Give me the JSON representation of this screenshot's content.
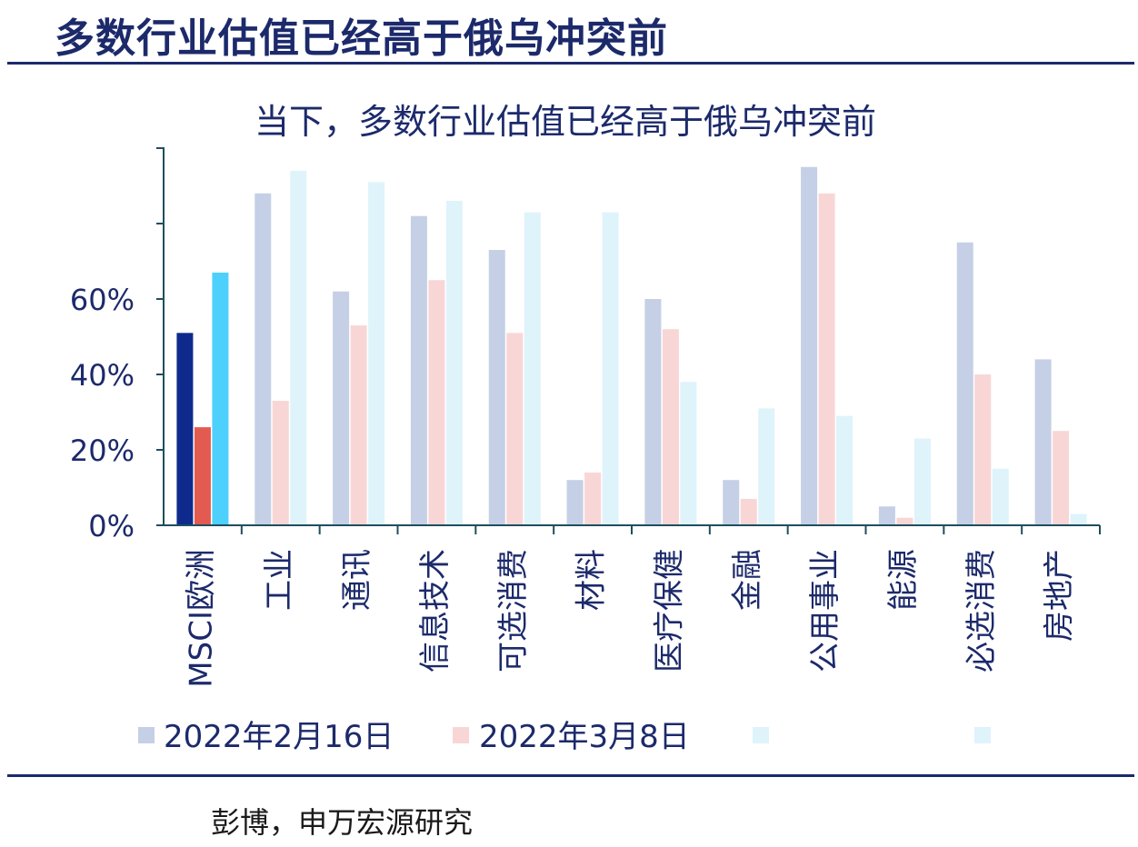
{
  "header": {
    "title": "多数行业估值已经高于俄乌冲突前"
  },
  "footer": {
    "source": "彭博，申万宏源研究"
  },
  "colors": {
    "theme": "#1c2a6b",
    "axis": "#1f4e5f",
    "tick_text": "#1c2a6b"
  },
  "chart_data": {
    "type": "bar",
    "title": "当下，多数行业估值已经高于俄乌冲突前",
    "xlabel": "",
    "ylabel": "",
    "ylim": [
      0,
      100
    ],
    "yticks": [
      0,
      20,
      40,
      60
    ],
    "ytick_labels": [
      "0%",
      "20%",
      "40%",
      "60%"
    ],
    "grid": false,
    "legend_position": "bottom",
    "categories": [
      "MSCI欧洲",
      "工业",
      "通讯",
      "信息技术",
      "可选消费",
      "材料",
      "医疗保健",
      "金融",
      "公用事业",
      "能源",
      "必选消费",
      "房地产"
    ],
    "series": [
      {
        "name": "2022年2月16日",
        "values": [
          51,
          88,
          62,
          82,
          73,
          12,
          60,
          12,
          95,
          5,
          75,
          44
        ],
        "color": "#c5d0e6",
        "highlight_color": "#0e2a8c"
      },
      {
        "name": "2022年3月8日",
        "values": [
          26,
          33,
          53,
          65,
          51,
          14,
          52,
          7,
          88,
          2,
          40,
          25
        ],
        "color": "#f9d6d6",
        "highlight_color": "#e35a50"
      },
      {
        "name": "",
        "values": [
          67,
          94,
          91,
          86,
          83,
          83,
          38,
          31,
          29,
          23,
          15,
          3
        ],
        "color": "#dff3fb",
        "highlight_color": "#4dd0fb"
      }
    ]
  }
}
